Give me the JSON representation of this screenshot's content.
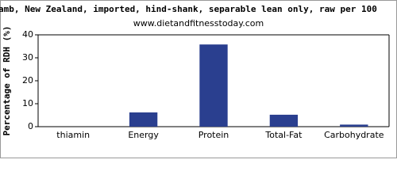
{
  "chart_data": {
    "type": "bar",
    "title": "amb, New Zealand, imported, hind-shank, separable lean only, raw per 100",
    "subtitle": "www.dietandfitnesstoday.com",
    "y_label": "Percentage of RDH (%)",
    "categories": [
      "thiamin",
      "Energy",
      "Protein",
      "Total-Fat",
      "Carbohydrate"
    ],
    "values": [
      0,
      6.2,
      35.8,
      5.2,
      0.9
    ],
    "color": "#2a3f8f",
    "ylim": [
      0,
      40
    ],
    "yticks": [
      0,
      10,
      20,
      30,
      40
    ],
    "grid": false
  }
}
